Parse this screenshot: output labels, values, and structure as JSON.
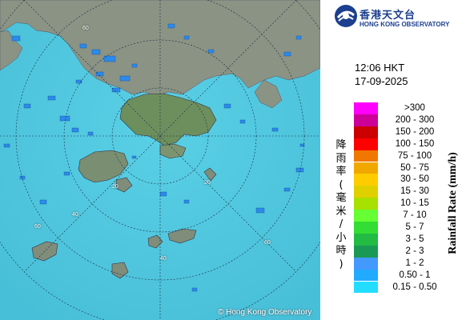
{
  "map": {
    "copyright": "© Hong Kong Observatory",
    "ring_labels": [
      "60",
      "60",
      "40",
      "20",
      "20",
      "40",
      "60"
    ]
  },
  "header": {
    "logo_zh": "香港天文台",
    "logo_en": "HONG KONG OBSERVATORY",
    "time": "12:06 HKT",
    "date": "17-09-2025"
  },
  "legend": {
    "title_en": "Rainfall Rate (mm/h)",
    "title_zh_chars": [
      "降",
      "雨",
      "率",
      "(",
      "毫",
      "米",
      "/",
      "小",
      "時",
      ")"
    ],
    "items": [
      {
        "label": ">300",
        "color": "#ff00ff"
      },
      {
        "label": "200 - 300",
        "color": "#cc0099"
      },
      {
        "label": "150 - 200",
        "color": "#cc0000"
      },
      {
        "label": "100 - 150",
        "color": "#ff0000"
      },
      {
        "label": "75 - 100",
        "color": "#f07800"
      },
      {
        "label": "50 - 75",
        "color": "#f0a800"
      },
      {
        "label": "30 - 50",
        "color": "#ffcc00"
      },
      {
        "label": "15 - 30",
        "color": "#e0d000"
      },
      {
        "label": "10 - 15",
        "color": "#a8e000"
      },
      {
        "label": "7 - 10",
        "color": "#66ff33"
      },
      {
        "label": "5 - 7",
        "color": "#33dd33"
      },
      {
        "label": "3 - 5",
        "color": "#22bb44"
      },
      {
        "label": "2 - 3",
        "color": "#1a9955"
      },
      {
        "label": "1 - 2",
        "color": "#4499ff"
      },
      {
        "label": "0.50 - 1",
        "color": "#22aaff"
      },
      {
        "label": "0.15 - 0.50",
        "color": "#22ddff"
      }
    ]
  },
  "colors": {
    "sea": "#4fc5dd",
    "land": "#8a9384",
    "land_green": "#6d8f5e",
    "rain_blue": "#2b8bea",
    "brand": "#1c3f8f"
  }
}
